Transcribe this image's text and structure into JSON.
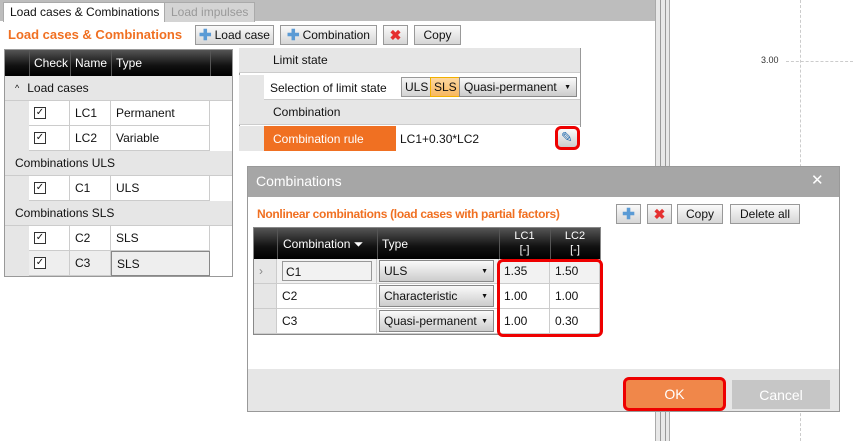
{
  "tabs": [
    {
      "label": "Load cases & Combinations",
      "active": true
    },
    {
      "label": "Load impulses",
      "active": false
    }
  ],
  "panel": {
    "title": "Load cases & Combinations",
    "load_case_label": "Load case",
    "combination_label": "Combination",
    "delete_icon": "red-x-icon",
    "copy_label": "Copy"
  },
  "grid": {
    "headers": [
      "Check",
      "Name",
      "Type"
    ],
    "groups": [
      {
        "label": "Load cases",
        "rows": [
          {
            "checked": true,
            "name": "LC1",
            "type": "Permanent"
          },
          {
            "checked": true,
            "name": "LC2",
            "type": "Variable"
          }
        ]
      },
      {
        "label": "Combinations ULS",
        "rows": [
          {
            "checked": true,
            "name": "C1",
            "type": "ULS"
          }
        ]
      },
      {
        "label": "Combinations SLS",
        "rows": [
          {
            "checked": true,
            "name": "C2",
            "type": "SLS"
          },
          {
            "checked": true,
            "name": "C3",
            "type": "SLS"
          }
        ]
      }
    ]
  },
  "props": {
    "limit_state_header": "Limit state",
    "selection_label": "Selection of limit state",
    "uls": "ULS",
    "sls": "SLS",
    "sls_type": "Quasi-permanent",
    "combination_header": "Combination",
    "rule_label": "Combination rule",
    "rule_value": "LC1+0.30*LC2",
    "edit_icon": "pencil-icon"
  },
  "canvas": {
    "dimension_label": "3.00"
  },
  "dialog": {
    "title": "Combinations",
    "subtitle": "Nonlinear combinations (load cases with partial factors)",
    "copy_label": "Copy",
    "delete_all_label": "Delete all",
    "headers": {
      "combination": "Combination",
      "type": "Type",
      "lc1": "LC1",
      "lc2": "LC2",
      "unit": "[-]"
    },
    "rows": [
      {
        "name": "C1",
        "type": "ULS",
        "lc1": "1.35",
        "lc2": "1.50",
        "current": true
      },
      {
        "name": "C2",
        "type": "Characteristic",
        "lc1": "1.00",
        "lc2": "1.00"
      },
      {
        "name": "C3",
        "type": "Quasi-permanent",
        "lc1": "1.00",
        "lc2": "0.30"
      }
    ],
    "ok_label": "OK",
    "cancel_label": "Cancel"
  },
  "colors": {
    "accent": "#f07022",
    "highlight": "#e00000",
    "ok": "#f0874a"
  }
}
